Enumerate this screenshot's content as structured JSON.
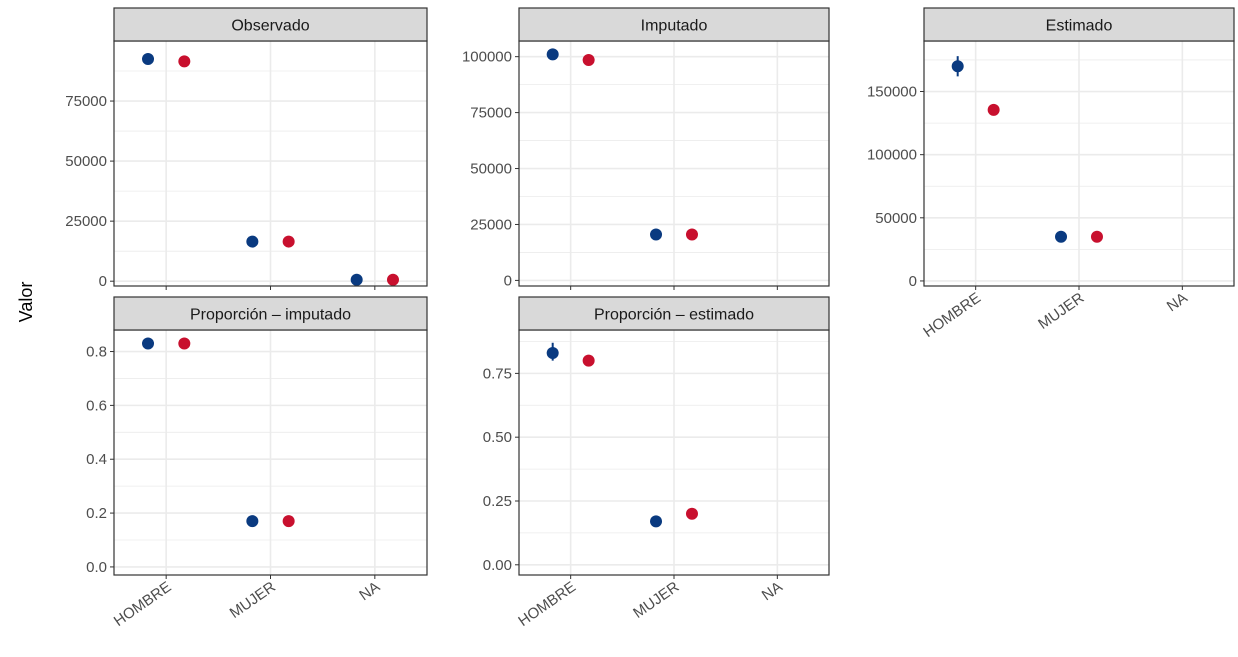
{
  "figure": {
    "ylabel": "Valor",
    "colors": {
      "series_a": "#0a3a80",
      "series_b": "#c8102e",
      "strip_bg": "#d9d9d9",
      "grid": "#ebebeb",
      "border": "#333333"
    }
  },
  "chart_data": [
    {
      "type": "scatter",
      "title": "Observado",
      "categories": [
        "HOMBRE",
        "MUJER",
        "NA"
      ],
      "yticks": [
        "0",
        "25000",
        "50000",
        "75000"
      ],
      "ylim": [
        -2000,
        100000
      ],
      "show_x_labels": false,
      "series": [
        {
          "values": [
            92500,
            16500,
            600
          ]
        },
        {
          "values": [
            91500,
            16500,
            600
          ]
        }
      ]
    },
    {
      "type": "scatter",
      "title": "Imputado",
      "categories": [
        "HOMBRE",
        "MUJER",
        "NA"
      ],
      "yticks": [
        "0",
        "25000",
        "50000",
        "75000",
        "100000"
      ],
      "ylim": [
        -2500,
        107000
      ],
      "show_x_labels": false,
      "series": [
        {
          "values": [
            101000,
            20500,
            null
          ]
        },
        {
          "values": [
            98500,
            20500,
            null
          ]
        }
      ]
    },
    {
      "type": "scatter",
      "title": "Estimado",
      "categories": [
        "HOMBRE",
        "MUJER",
        "NA"
      ],
      "yticks": [
        "0",
        "50000",
        "100000",
        "150000"
      ],
      "ylim": [
        -4000,
        190000
      ],
      "show_x_labels": true,
      "series": [
        {
          "values": [
            170000,
            35000,
            null
          ],
          "error": [
            [
              162000,
              178000
            ],
            null,
            null
          ]
        },
        {
          "values": [
            135500,
            35000,
            null
          ]
        }
      ]
    },
    {
      "type": "scatter",
      "title": "Proporción – imputado",
      "categories": [
        "HOMBRE",
        "MUJER",
        "NA"
      ],
      "yticks": [
        "0.0",
        "0.2",
        "0.4",
        "0.6",
        "0.8"
      ],
      "ylim": [
        -0.03,
        0.88
      ],
      "show_x_labels": true,
      "series": [
        {
          "values": [
            0.83,
            0.17,
            null
          ]
        },
        {
          "values": [
            0.83,
            0.17,
            null
          ]
        }
      ]
    },
    {
      "type": "scatter",
      "title": "Proporción – estimado",
      "categories": [
        "HOMBRE",
        "MUJER",
        "NA"
      ],
      "yticks": [
        "0.00",
        "0.25",
        "0.50",
        "0.75"
      ],
      "ylim": [
        -0.04,
        0.92
      ],
      "show_x_labels": true,
      "series": [
        {
          "values": [
            0.83,
            0.17,
            null
          ],
          "error": [
            [
              0.8,
              0.87
            ],
            null,
            null
          ]
        },
        {
          "values": [
            0.8,
            0.2,
            null
          ],
          "error": [
            null,
            [
              0.18,
              0.22
            ],
            null
          ]
        }
      ]
    }
  ]
}
